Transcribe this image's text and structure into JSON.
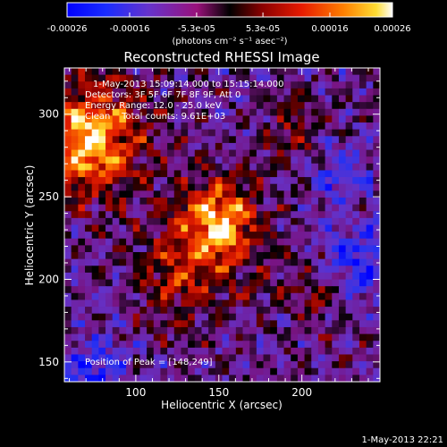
{
  "colorbar": {
    "ticks": [
      "-0.00026",
      "-0.00016",
      "-5.3e-05",
      "5.3e-05",
      "0.00016",
      "0.00026"
    ],
    "tick_values": [
      -0.00026,
      -0.00016,
      -5.3e-05,
      5.3e-05,
      0.00016,
      0.00026
    ],
    "range": [
      -0.00026,
      0.00026
    ],
    "units": "(photons cm⁻² s⁻¹ asec⁻²)"
  },
  "chart_data": {
    "type": "heatmap",
    "title": "Reconstructed RHESSI Image",
    "xlabel": "Heliocentric X (arcsec)",
    "ylabel": "Heliocentric Y (arcsec)",
    "xlim": [
      57,
      247
    ],
    "ylim": [
      138,
      328
    ],
    "xticks": [
      100,
      150,
      200
    ],
    "yticks": [
      150,
      200,
      250,
      300
    ],
    "peak": [
      148,
      249
    ],
    "annotations": [
      "1-May-2013 15:09:14.000 to 15:15:14.000",
      "Detectors: 3F 5F 6F 7F 8F 9F, Att 0",
      "Energy Range: 12.0 - 25.0 keV",
      "Clean    Total counts: 9.61E+03",
      "Position of Peak = [148,249]"
    ]
  },
  "footer": {
    "timestamp": "1-May-2013 22:21"
  }
}
